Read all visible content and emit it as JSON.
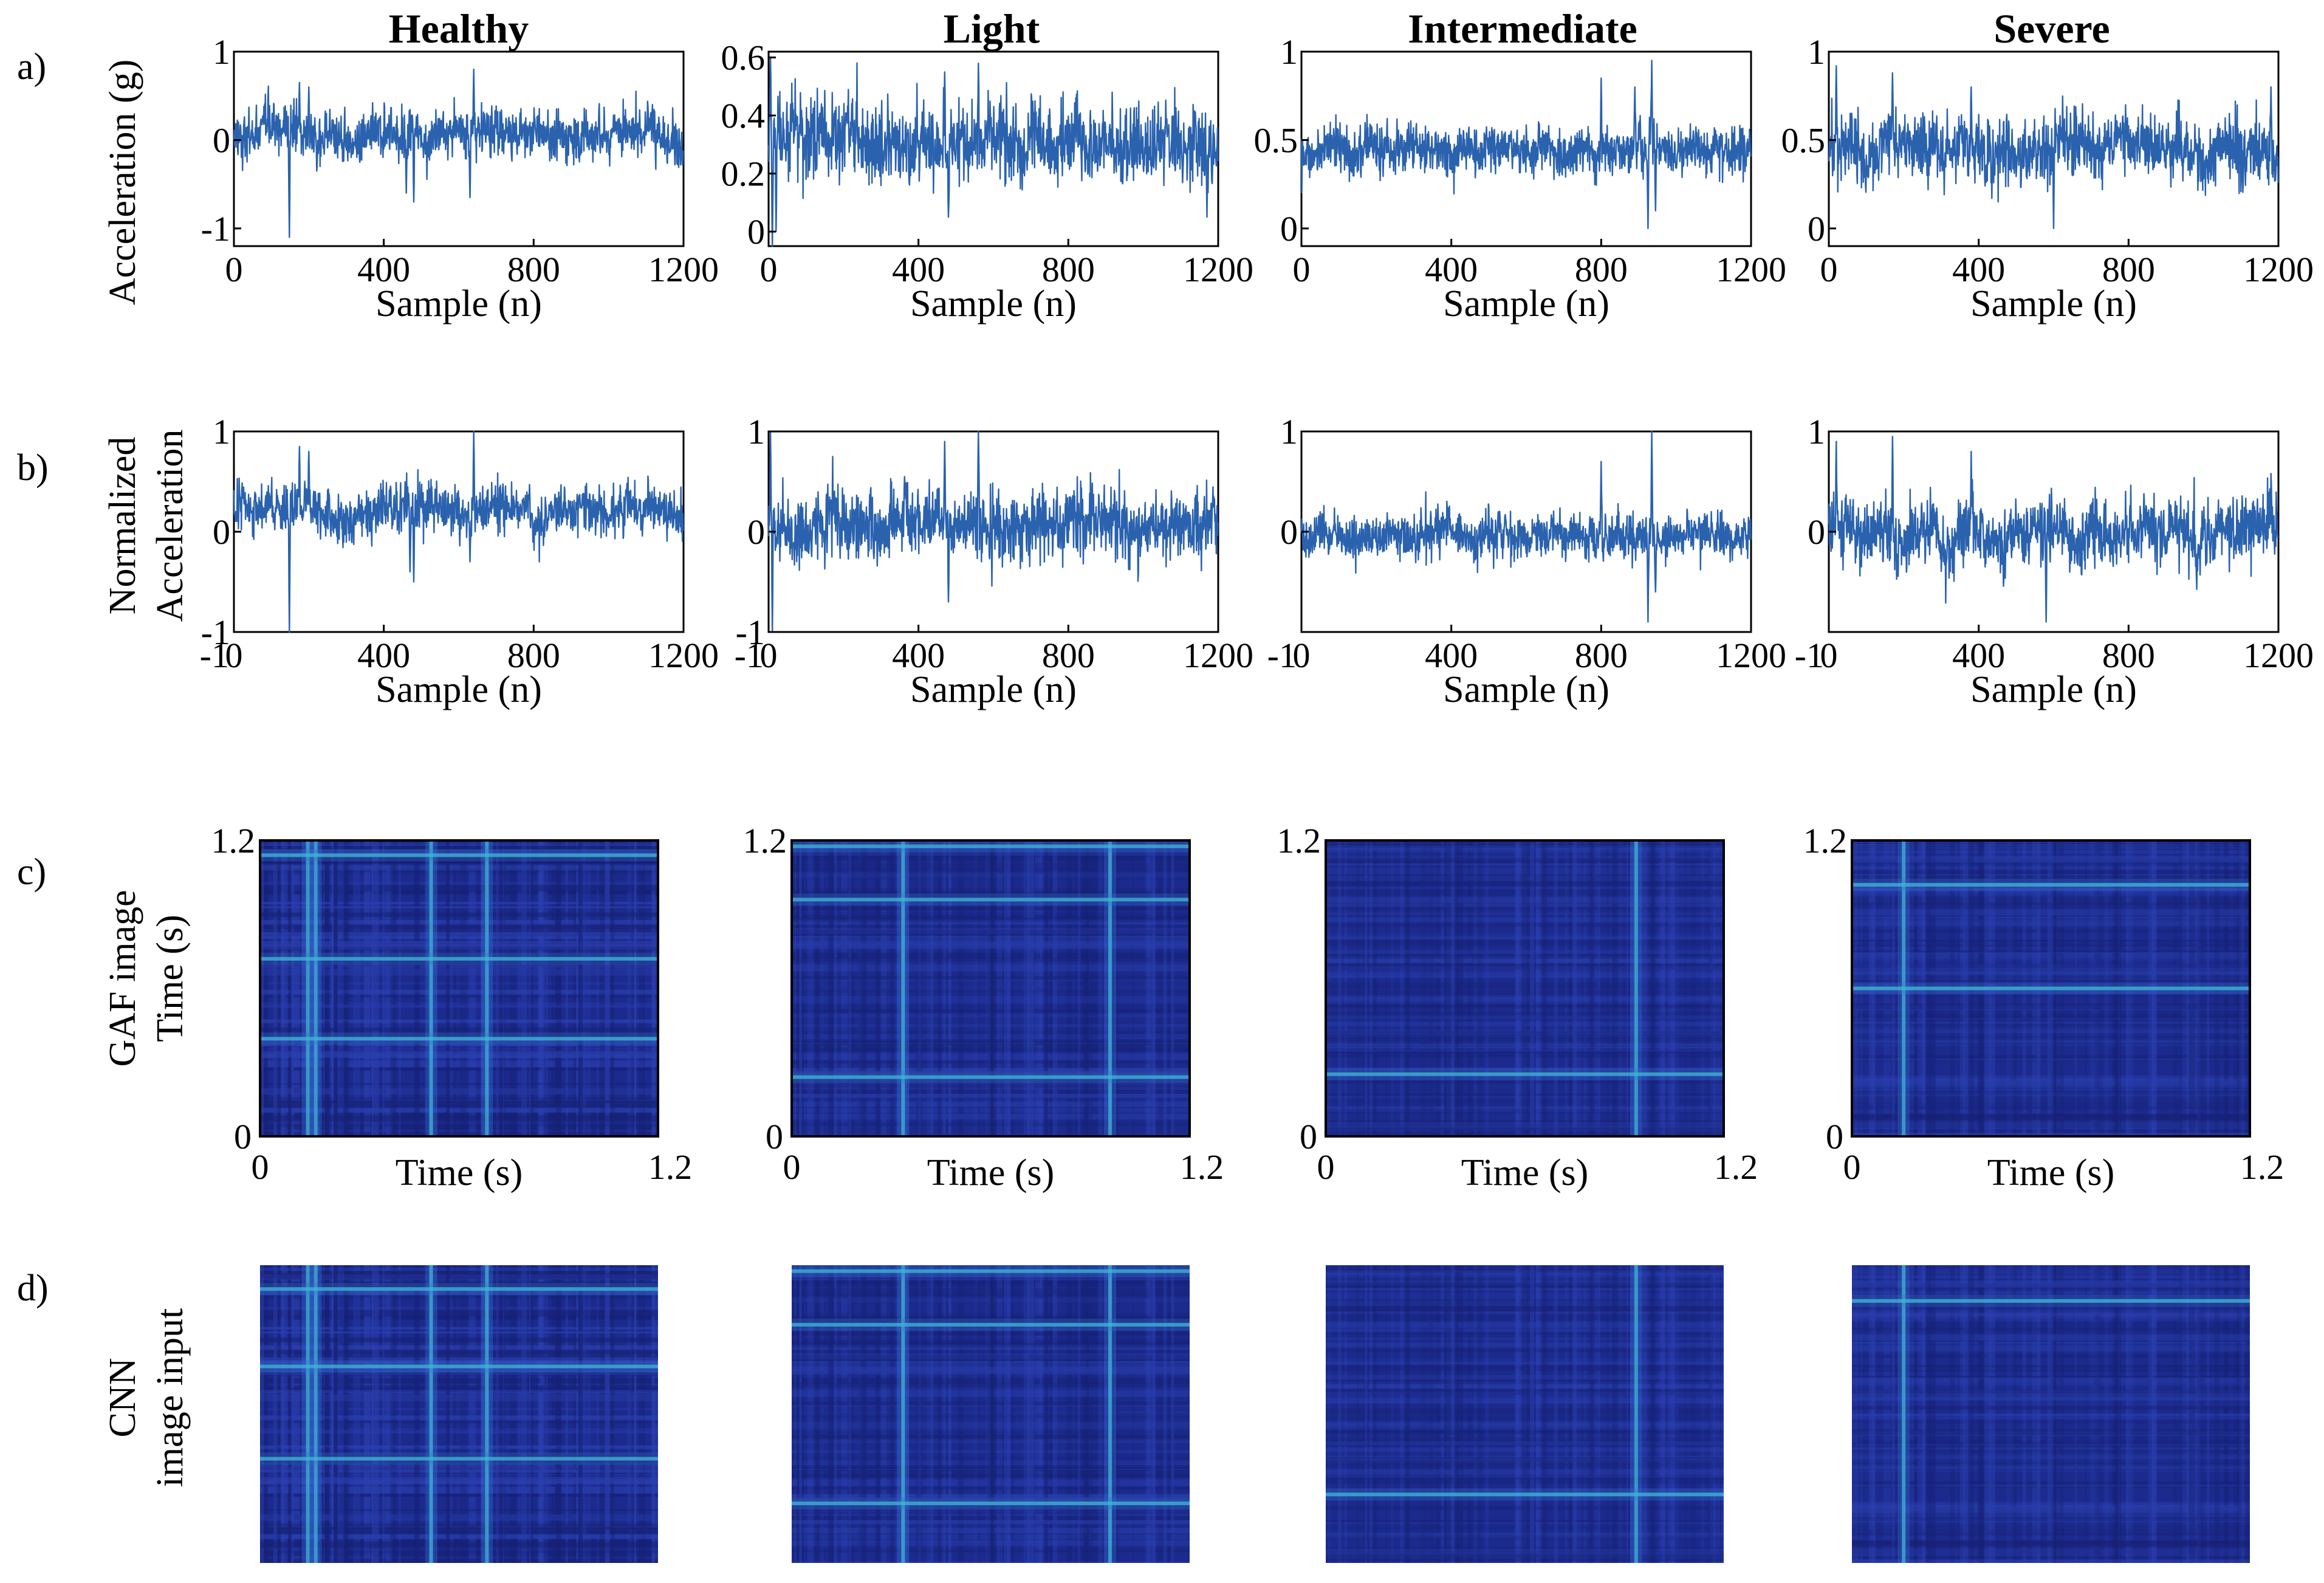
{
  "figure": {
    "column_titles": [
      "Healthy",
      "Light",
      "Intermediate",
      "Severe"
    ],
    "row_labels": [
      "a)",
      "b)",
      "c)",
      "d)"
    ],
    "ylabels": {
      "a": [
        "Acceleration (g)"
      ],
      "b": [
        "Normalized",
        "Acceleration"
      ],
      "c": [
        "GAF image",
        "Time (s)"
      ],
      "d": [
        "CNN",
        "image input"
      ]
    },
    "xlabel_signal": "Sample (n)",
    "xlabel_gaf": "Time (s)"
  },
  "colors": {
    "signal_line": "#2a62ae",
    "gaf_base": "#1b2a8c",
    "gaf_highlight": "#3fd6d0"
  },
  "chart_data": [
    {
      "type": "line",
      "row": "a",
      "title": "Healthy",
      "xlabel": "Sample (n)",
      "ylabel": "Acceleration (g)",
      "xlim": [
        0,
        1200
      ],
      "ylim": [
        -1.2,
        1
      ],
      "xticks": [
        "0",
        "400",
        "800",
        "1200"
      ],
      "xtick_values": [
        0,
        400,
        800,
        1200
      ],
      "yticks": [
        "-1",
        "0",
        "1"
      ],
      "ytick_values": [
        -1,
        0,
        1
      ],
      "series": [
        {
          "n_samples": 1200,
          "mean": 0.05,
          "amplitude": 0.25,
          "events": [
            [
              148,
              -1.1
            ],
            [
              175,
              0.65
            ],
            [
              200,
              0.6
            ],
            [
              460,
              -0.6
            ],
            [
              480,
              -0.7
            ],
            [
              640,
              0.8
            ],
            [
              630,
              -0.65
            ]
          ]
        }
      ]
    },
    {
      "type": "line",
      "row": "a",
      "title": "Light",
      "xlabel": "Sample (n)",
      "ylabel": "",
      "xlim": [
        0,
        1200
      ],
      "ylim": [
        -0.05,
        0.62
      ],
      "xticks": [
        "0",
        "400",
        "800",
        "1200"
      ],
      "xtick_values": [
        0,
        400,
        800,
        1200
      ],
      "yticks": [
        "0",
        "0.2",
        "0.4",
        "0.6"
      ],
      "ytick_values": [
        0,
        0.2,
        0.4,
        0.6
      ],
      "series": [
        {
          "n_samples": 1200,
          "mean": 0.3,
          "amplitude": 0.12,
          "events": [
            [
              5,
              0.6
            ],
            [
              10,
              -0.05
            ],
            [
              20,
              0.0
            ],
            [
              470,
              0.55
            ],
            [
              480,
              0.05
            ],
            [
              560,
              0.58
            ],
            [
              1170,
              0.05
            ]
          ]
        }
      ]
    },
    {
      "type": "line",
      "row": "a",
      "title": "Intermediate",
      "xlabel": "Sample (n)",
      "ylabel": "",
      "xlim": [
        0,
        1200
      ],
      "ylim": [
        -0.1,
        1
      ],
      "xticks": [
        "0",
        "400",
        "800",
        "1200"
      ],
      "xtick_values": [
        0,
        400,
        800,
        1200
      ],
      "yticks": [
        "0",
        "0.5",
        "1"
      ],
      "ytick_values": [
        0,
        0.5,
        1
      ],
      "series": [
        {
          "n_samples": 1200,
          "mean": 0.45,
          "amplitude": 0.12,
          "events": [
            [
              935,
              0.95
            ],
            [
              925,
              0.0
            ],
            [
              945,
              0.1
            ],
            [
              800,
              0.85
            ],
            [
              890,
              0.8
            ]
          ]
        }
      ]
    },
    {
      "type": "line",
      "row": "a",
      "title": "Severe",
      "xlabel": "Sample (n)",
      "ylabel": "",
      "xlim": [
        0,
        1200
      ],
      "ylim": [
        -0.1,
        1
      ],
      "xticks": [
        "0",
        "400",
        "800",
        "1200"
      ],
      "xtick_values": [
        0,
        400,
        800,
        1200
      ],
      "yticks": [
        "0",
        "0.5",
        "1"
      ],
      "ytick_values": [
        0,
        0.5,
        1
      ],
      "series": [
        {
          "n_samples": 1200,
          "mean": 0.45,
          "amplitude": 0.17,
          "events": [
            [
              20,
              0.92
            ],
            [
              170,
              0.88
            ],
            [
              600,
              0.0
            ],
            [
              380,
              0.8
            ],
            [
              1180,
              0.8
            ]
          ]
        }
      ]
    },
    {
      "type": "line",
      "row": "b",
      "title": "",
      "xlabel": "Sample (n)",
      "ylabel": "Normalized Acceleration",
      "xlim": [
        0,
        1200
      ],
      "ylim": [
        -1,
        1
      ],
      "xticks": [
        "-1",
        "0",
        "400",
        "800",
        "1200"
      ],
      "xtick_values": [
        -1,
        0,
        400,
        800,
        1200
      ],
      "yticks": [
        "-1",
        "0",
        "1"
      ],
      "ytick_values": [
        -1,
        0,
        1
      ],
      "series": [
        {
          "n_samples": 1200,
          "mean": 0.2,
          "amplitude": 0.22,
          "events": [
            [
              148,
              -1.0
            ],
            [
              175,
              0.85
            ],
            [
              200,
              0.8
            ],
            [
              470,
              -0.4
            ],
            [
              480,
              -0.5
            ],
            [
              640,
              1.0
            ],
            [
              630,
              -0.3
            ]
          ]
        }
      ]
    },
    {
      "type": "line",
      "row": "b",
      "title": "",
      "xlabel": "Sample (n)",
      "ylabel": "",
      "xlim": [
        0,
        1200
      ],
      "ylim": [
        -1,
        1
      ],
      "xticks": [
        "-1",
        "0",
        "400",
        "800",
        "1200"
      ],
      "xtick_values": [
        -1,
        0,
        400,
        800,
        1200
      ],
      "yticks": [
        "-1",
        "0",
        "1"
      ],
      "ytick_values": [
        -1,
        0,
        1
      ],
      "series": [
        {
          "n_samples": 1200,
          "mean": 0.05,
          "amplitude": 0.3,
          "events": [
            [
              5,
              1.0
            ],
            [
              10,
              -1.0
            ],
            [
              470,
              0.9
            ],
            [
              560,
              1.0
            ],
            [
              480,
              -0.7
            ]
          ]
        }
      ]
    },
    {
      "type": "line",
      "row": "b",
      "title": "",
      "xlabel": "Sample (n)",
      "ylabel": "",
      "xlim": [
        0,
        1200
      ],
      "ylim": [
        -1,
        1
      ],
      "xticks": [
        "-1",
        "0",
        "400",
        "800",
        "1200"
      ],
      "xtick_values": [
        -1,
        0,
        400,
        800,
        1200
      ],
      "yticks": [
        "0",
        "1"
      ],
      "ytick_values": [
        0,
        1
      ],
      "series": [
        {
          "n_samples": 1200,
          "mean": -0.05,
          "amplitude": 0.2,
          "events": [
            [
              935,
              1.0
            ],
            [
              925,
              -0.9
            ],
            [
              945,
              -0.6
            ],
            [
              800,
              0.7
            ]
          ]
        }
      ]
    },
    {
      "type": "line",
      "row": "b",
      "title": "",
      "xlabel": "Sample (n)",
      "ylabel": "",
      "xlim": [
        0,
        1200
      ],
      "ylim": [
        -1,
        1
      ],
      "xticks": [
        "-1",
        "0",
        "400",
        "800",
        "1200"
      ],
      "xtick_values": [
        -1,
        0,
        400,
        800,
        1200
      ],
      "yticks": [
        "0",
        "1"
      ],
      "ytick_values": [
        0,
        1
      ],
      "series": [
        {
          "n_samples": 1200,
          "mean": 0.0,
          "amplitude": 0.3,
          "events": [
            [
              20,
              0.9
            ],
            [
              170,
              0.95
            ],
            [
              580,
              -0.9
            ],
            [
              380,
              0.8
            ]
          ]
        }
      ]
    },
    {
      "type": "heatmap",
      "row": "c",
      "title": "",
      "xlabel": "Time (s)",
      "ylabel": "Time (s)",
      "xlim": [
        0,
        1.2
      ],
      "ylim": [
        0,
        1.2
      ],
      "xticks": [
        "0",
        "1.2"
      ],
      "yticks": [
        "0",
        "1.2"
      ],
      "bright_cols": [
        0.12,
        0.14,
        0.43,
        0.57
      ],
      "bright_rows": [
        0.95,
        0.33,
        0.6
      ],
      "intensity": 0.55
    },
    {
      "type": "heatmap",
      "row": "c",
      "title": "",
      "xlabel": "Time (s)",
      "ylabel": "",
      "xlim": [
        0,
        1.2
      ],
      "ylim": [
        0,
        1.2
      ],
      "xticks": [
        "0",
        "1.2"
      ],
      "yticks": [
        "0",
        "1.2"
      ],
      "bright_cols": [
        0.28,
        0.8
      ],
      "bright_rows": [
        0.8,
        0.2,
        0.98
      ],
      "intensity": 0.3
    },
    {
      "type": "heatmap",
      "row": "c",
      "title": "",
      "xlabel": "Time (s)",
      "ylabel": "",
      "xlim": [
        0,
        1.2
      ],
      "ylim": [
        0,
        1.2
      ],
      "xticks": [
        "0",
        "1.2"
      ],
      "yticks": [
        "0",
        "1.2"
      ],
      "bright_cols": [
        0.78
      ],
      "bright_rows": [
        0.21
      ],
      "intensity": 0.2
    },
    {
      "type": "heatmap",
      "row": "c",
      "title": "",
      "xlabel": "Time (s)",
      "ylabel": "",
      "xlim": [
        0,
        1.2
      ],
      "ylim": [
        0,
        1.2
      ],
      "xticks": [
        "0",
        "1.2"
      ],
      "yticks": [
        "0",
        "1.2"
      ],
      "bright_cols": [
        0.13
      ],
      "bright_rows": [
        0.85,
        0.5
      ],
      "intensity": 0.25
    },
    {
      "type": "heatmap",
      "row": "d",
      "title": "",
      "bright_cols": [
        0.12,
        0.14,
        0.43,
        0.57
      ],
      "bright_rows": [
        0.92,
        0.66,
        0.35
      ],
      "intensity": 0.55
    },
    {
      "type": "heatmap",
      "row": "d",
      "title": "",
      "bright_cols": [
        0.28,
        0.8
      ],
      "bright_rows": [
        0.8,
        0.2,
        0.98
      ],
      "intensity": 0.3
    },
    {
      "type": "heatmap",
      "row": "d",
      "title": "",
      "bright_cols": [
        0.78
      ],
      "bright_rows": [
        0.23
      ],
      "intensity": 0.2
    },
    {
      "type": "heatmap",
      "row": "d",
      "title": "",
      "bright_cols": [
        0.13
      ],
      "bright_rows": [
        0.88
      ],
      "intensity": 0.25
    }
  ]
}
